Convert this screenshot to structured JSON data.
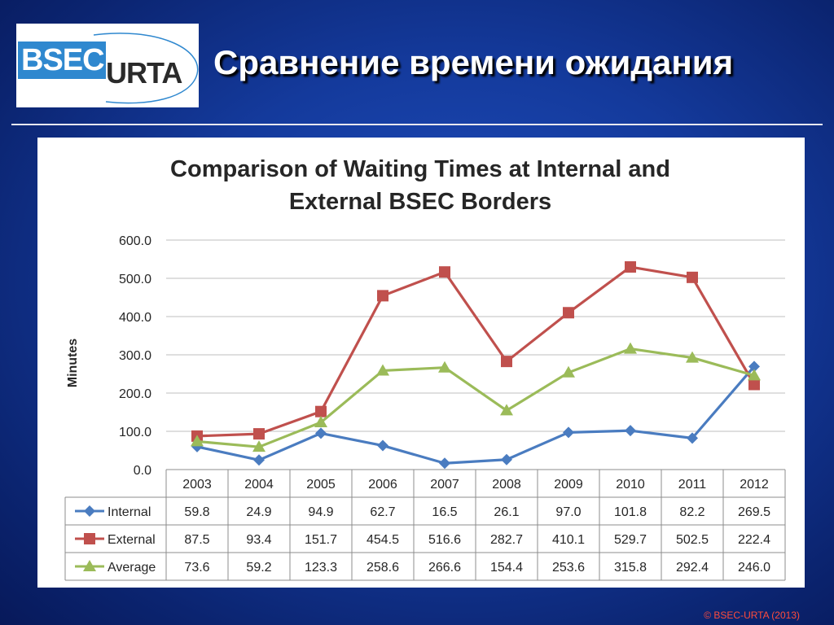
{
  "slide": {
    "title": "Сравнение времени ожидания",
    "footer": "© BSEC-URTA (2013)",
    "logo": {
      "text_left": "BSEC",
      "text_right": "URTA"
    }
  },
  "chart_data": {
    "type": "line",
    "title_lines": [
      "Comparison of Waiting Times at Internal and",
      "External BSEC Borders"
    ],
    "ylabel": "Minutes",
    "xlabel": "",
    "ylim": [
      0,
      600
    ],
    "yticks": [
      "0.0",
      "100.0",
      "200.0",
      "300.0",
      "400.0",
      "500.0",
      "600.0"
    ],
    "grid": true,
    "legend": "data-table",
    "categories": [
      "2003",
      "2004",
      "2005",
      "2006",
      "2007",
      "2008",
      "2009",
      "2010",
      "2011",
      "2012"
    ],
    "series": [
      {
        "name": "Internal",
        "color": "#4a7cc0",
        "marker": "diamond",
        "values": [
          59.8,
          24.9,
          94.9,
          62.7,
          16.5,
          26.1,
          97.0,
          101.8,
          82.2,
          269.5
        ],
        "labels": [
          "59.8",
          "24.9",
          "94.9",
          "62.7",
          "16.5",
          "26.1",
          "97.0",
          "101.8",
          "82.2",
          "269.5"
        ]
      },
      {
        "name": "External",
        "color": "#c0504d",
        "marker": "square",
        "values": [
          87.5,
          93.4,
          151.7,
          454.5,
          516.6,
          282.7,
          410.1,
          529.7,
          502.5,
          222.4
        ],
        "labels": [
          "87.5",
          "93.4",
          "151.7",
          "454.5",
          "516.6",
          "282.7",
          "410.1",
          "529.7",
          "502.5",
          "222.4"
        ]
      },
      {
        "name": "Average",
        "color": "#9bbb59",
        "marker": "triangle",
        "values": [
          73.6,
          59.2,
          123.3,
          258.6,
          266.6,
          154.4,
          253.6,
          315.8,
          292.4,
          246.0
        ],
        "labels": [
          "73.6",
          "59.2",
          "123.3",
          "258.6",
          "266.6",
          "154.4",
          "253.6",
          "315.8",
          "292.4",
          "246.0"
        ]
      }
    ]
  }
}
